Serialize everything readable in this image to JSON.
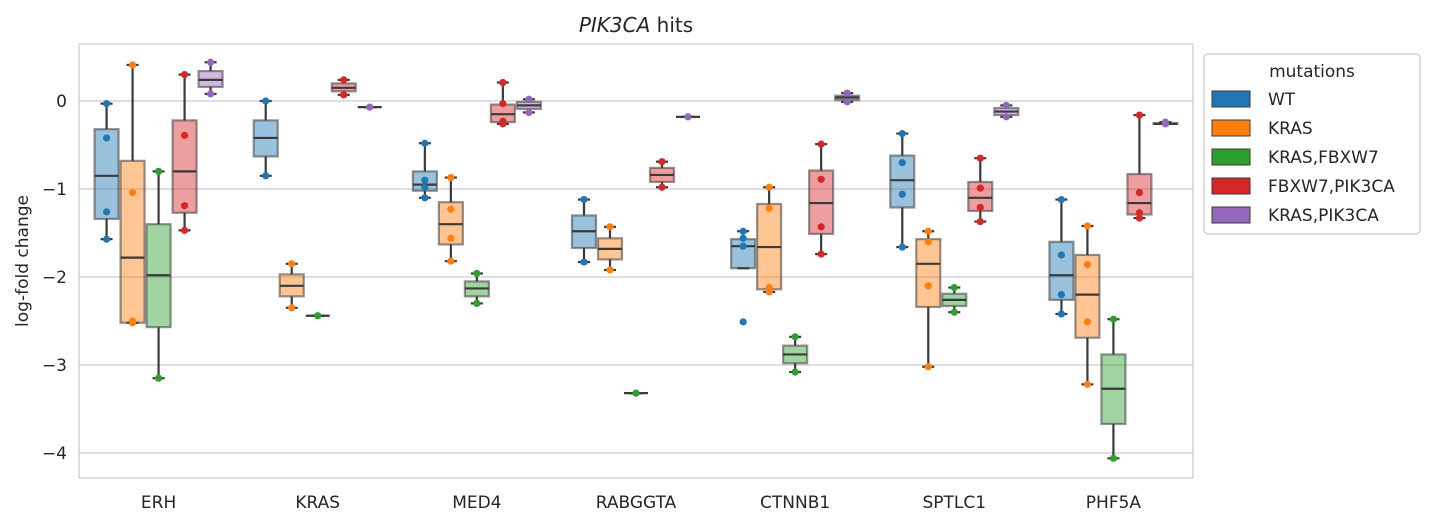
{
  "chart_data": {
    "type": "box",
    "title_italic": "PIK3CA",
    "title_rest": " hits",
    "xlabel": "",
    "ylabel": "log-fold change",
    "ylim": [
      -4.3,
      0.65
    ],
    "yticks": [
      0,
      -1,
      -2,
      -3,
      -4
    ],
    "ytick_labels": [
      "0",
      "−1",
      "−2",
      "−3",
      "−4"
    ],
    "grid": "horizontal",
    "legend_title": "mutations",
    "legend_position": "outside-right-top",
    "categories": [
      "ERH",
      "KRAS",
      "MED4",
      "RABGGTA",
      "CTNNB1",
      "SPTLC1",
      "PHF5A"
    ],
    "series": [
      {
        "name": "WT",
        "color": "#1f77b4",
        "boxes": [
          {
            "whisker_low": -1.57,
            "q1": -1.34,
            "median": -0.85,
            "q3": -0.32,
            "whisker_high": -0.03,
            "points": [
              -0.03,
              -0.42,
              -1.26,
              -1.57
            ]
          },
          {
            "whisker_low": -0.85,
            "q1": -0.63,
            "median": -0.42,
            "q3": -0.22,
            "whisker_high": 0.0,
            "points": [
              0.0,
              -0.85
            ]
          },
          {
            "whisker_low": -1.1,
            "q1": -1.02,
            "median": -0.95,
            "q3": -0.8,
            "whisker_high": -0.48,
            "points": [
              -0.48,
              -0.9,
              -0.98,
              -1.1
            ]
          },
          {
            "whisker_low": -1.83,
            "q1": -1.67,
            "median": -1.48,
            "q3": -1.3,
            "whisker_high": -1.12,
            "points": [
              -1.12,
              -1.83
            ]
          },
          {
            "whisker_low": -1.9,
            "q1": -1.9,
            "median": -1.65,
            "q3": -1.57,
            "whisker_high": -1.48,
            "points": [
              -1.48,
              -1.56,
              -1.65,
              -2.51
            ]
          },
          {
            "whisker_low": -1.66,
            "q1": -1.21,
            "median": -0.9,
            "q3": -0.62,
            "whisker_high": -0.37,
            "points": [
              -0.37,
              -0.7,
              -1.06,
              -1.66
            ]
          },
          {
            "whisker_low": -2.42,
            "q1": -2.26,
            "median": -1.98,
            "q3": -1.6,
            "whisker_high": -1.12,
            "points": [
              -1.12,
              -1.75,
              -2.2,
              -2.42
            ]
          }
        ]
      },
      {
        "name": "KRAS",
        "color": "#ff7f0e",
        "boxes": [
          {
            "whisker_low": -2.52,
            "q1": -2.52,
            "median": -1.78,
            "q3": -0.68,
            "whisker_high": 0.41,
            "points": [
              0.41,
              -1.04,
              -2.5,
              -2.52
            ]
          },
          {
            "whisker_low": -2.35,
            "q1": -2.22,
            "median": -2.1,
            "q3": -1.97,
            "whisker_high": -1.85,
            "points": [
              -1.85,
              -2.35
            ]
          },
          {
            "whisker_low": -1.82,
            "q1": -1.63,
            "median": -1.4,
            "q3": -1.15,
            "whisker_high": -0.87,
            "points": [
              -0.87,
              -1.23,
              -1.56,
              -1.82
            ]
          },
          {
            "whisker_low": -1.92,
            "q1": -1.8,
            "median": -1.68,
            "q3": -1.56,
            "whisker_high": -1.43,
            "points": [
              -1.43,
              -1.92
            ]
          },
          {
            "whisker_low": -2.17,
            "q1": -2.14,
            "median": -1.66,
            "q3": -1.17,
            "whisker_high": -0.98,
            "points": [
              -0.98,
              -1.22,
              -2.12,
              -2.17
            ]
          },
          {
            "whisker_low": -3.02,
            "q1": -2.34,
            "median": -1.85,
            "q3": -1.57,
            "whisker_high": -1.48,
            "points": [
              -1.48,
              -1.6,
              -2.1,
              -3.02
            ]
          },
          {
            "whisker_low": -3.22,
            "q1": -2.69,
            "median": -2.2,
            "q3": -1.75,
            "whisker_high": -1.42,
            "points": [
              -1.42,
              -1.86,
              -2.51,
              -3.22
            ]
          }
        ]
      },
      {
        "name": "KRAS,FBXW7",
        "color": "#2ca02c",
        "boxes": [
          {
            "whisker_low": -3.15,
            "q1": -2.57,
            "median": -1.98,
            "q3": -1.4,
            "whisker_high": -0.8,
            "points": [
              -0.8,
              -3.15
            ]
          },
          {
            "whisker_low": -2.44,
            "q1": -2.44,
            "median": -2.44,
            "q3": -2.44,
            "whisker_high": -2.44,
            "points": [
              -2.44
            ]
          },
          {
            "whisker_low": -2.3,
            "q1": -2.22,
            "median": -2.13,
            "q3": -2.05,
            "whisker_high": -1.96,
            "points": [
              -1.96,
              -2.3
            ]
          },
          {
            "whisker_low": -3.32,
            "q1": -3.32,
            "median": -3.32,
            "q3": -3.32,
            "whisker_high": -3.32,
            "points": [
              -3.32
            ]
          },
          {
            "whisker_low": -3.08,
            "q1": -2.98,
            "median": -2.88,
            "q3": -2.78,
            "whisker_high": -2.68,
            "points": [
              -2.68,
              -3.08
            ]
          },
          {
            "whisker_low": -2.4,
            "q1": -2.33,
            "median": -2.26,
            "q3": -2.19,
            "whisker_high": -2.12,
            "points": [
              -2.12,
              -2.4
            ]
          },
          {
            "whisker_low": -4.06,
            "q1": -3.67,
            "median": -3.27,
            "q3": -2.88,
            "whisker_high": -2.48,
            "points": [
              -2.48,
              -4.06
            ]
          }
        ]
      },
      {
        "name": "FBXW7,PIK3CA",
        "color": "#d62728",
        "boxes": [
          {
            "whisker_low": -1.47,
            "q1": -1.27,
            "median": -0.8,
            "q3": -0.22,
            "whisker_high": 0.3,
            "points": [
              0.3,
              -0.39,
              -1.19,
              -1.47
            ]
          },
          {
            "whisker_low": 0.07,
            "q1": 0.11,
            "median": 0.15,
            "q3": 0.2,
            "whisker_high": 0.24,
            "points": [
              0.24,
              0.07
            ]
          },
          {
            "whisker_low": -0.26,
            "q1": -0.24,
            "median": -0.15,
            "q3": -0.04,
            "whisker_high": 0.21,
            "points": [
              0.21,
              -0.03,
              -0.23,
              -0.26
            ]
          },
          {
            "whisker_low": -0.98,
            "q1": -0.92,
            "median": -0.84,
            "q3": -0.76,
            "whisker_high": -0.69,
            "points": [
              -0.69,
              -0.98
            ]
          },
          {
            "whisker_low": -1.74,
            "q1": -1.51,
            "median": -1.16,
            "q3": -0.79,
            "whisker_high": -0.49,
            "points": [
              -0.49,
              -0.89,
              -1.43,
              -1.74
            ]
          },
          {
            "whisker_low": -1.37,
            "q1": -1.25,
            "median": -1.1,
            "q3": -0.92,
            "whisker_high": -0.65,
            "points": [
              -0.65,
              -0.99,
              -1.21,
              -1.37
            ]
          },
          {
            "whisker_low": -1.33,
            "q1": -1.29,
            "median": -1.16,
            "q3": -0.83,
            "whisker_high": -0.16,
            "points": [
              -0.16,
              -1.04,
              -1.27,
              -1.33
            ]
          }
        ]
      },
      {
        "name": "KRAS,PIK3CA",
        "color": "#9467bd",
        "boxes": [
          {
            "whisker_low": 0.08,
            "q1": 0.16,
            "median": 0.24,
            "q3": 0.34,
            "whisker_high": 0.44,
            "points": [
              0.44,
              0.08
            ]
          },
          {
            "whisker_low": -0.07,
            "q1": -0.07,
            "median": -0.07,
            "q3": -0.07,
            "whisker_high": -0.07,
            "points": [
              -0.07
            ]
          },
          {
            "whisker_low": -0.13,
            "q1": -0.09,
            "median": -0.05,
            "q3": -0.01,
            "whisker_high": 0.02,
            "points": [
              0.02,
              -0.13
            ]
          },
          {
            "whisker_low": -0.18,
            "q1": -0.18,
            "median": -0.18,
            "q3": -0.18,
            "whisker_high": -0.18,
            "points": [
              -0.18
            ]
          },
          {
            "whisker_low": -0.01,
            "q1": 0.01,
            "median": 0.04,
            "q3": 0.06,
            "whisker_high": 0.09,
            "points": [
              0.09,
              -0.01
            ]
          },
          {
            "whisker_low": -0.18,
            "q1": -0.16,
            "median": -0.12,
            "q3": -0.08,
            "whisker_high": -0.05,
            "points": [
              -0.05,
              -0.18
            ]
          },
          {
            "whisker_low": -0.26,
            "q1": -0.26,
            "median": -0.26,
            "q3": -0.25,
            "whisker_high": -0.24,
            "points": [
              -0.24,
              -0.26
            ]
          }
        ]
      }
    ]
  }
}
